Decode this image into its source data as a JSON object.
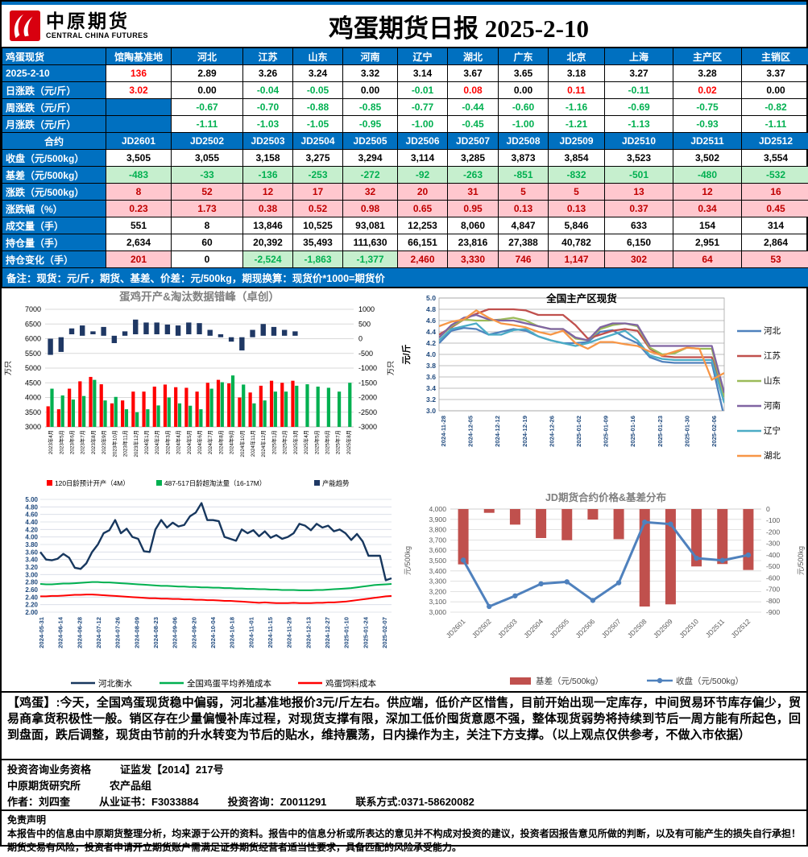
{
  "header": {
    "logo_cn": "中原期货",
    "logo_en": "CENTRAL CHINA FUTURES",
    "title": "鸡蛋期货日报 2025-2-10"
  },
  "spot_table": {
    "columns": [
      "鸡蛋现货",
      "馆陶基准地",
      "河北",
      "江苏",
      "山东",
      "河南",
      "辽宁",
      "湖北",
      "广东",
      "北京",
      "上海",
      "主产区",
      "主销区"
    ],
    "rows": [
      {
        "label": "2025-2-10",
        "type": "spot",
        "cells": [
          "136",
          "2.89",
          "3.26",
          "3.24",
          "3.32",
          "3.14",
          "3.67",
          "3.65",
          "3.18",
          "3.27",
          "3.28",
          "3.37"
        ]
      },
      {
        "label": "日涨跌（元/斤）",
        "type": "daily_chg",
        "cells": [
          "3.02",
          "0.00",
          "-0.04",
          "-0.05",
          "0.00",
          "-0.01",
          "0.08",
          "0.00",
          "0.11",
          "-0.11",
          "0.02",
          "0.00"
        ]
      },
      {
        "label": "周涨跌（元/斤）",
        "type": "period_chg",
        "cells": [
          "",
          "-0.67",
          "-0.70",
          "-0.88",
          "-0.85",
          "-0.77",
          "-0.44",
          "-0.60",
          "-1.16",
          "-0.69",
          "-0.75",
          "-0.82"
        ]
      },
      {
        "label": "月涨跌（元/斤）",
        "type": "period_chg",
        "cells": [
          "",
          "-1.11",
          "-1.03",
          "-1.05",
          "-0.95",
          "-1.00",
          "-0.45",
          "-1.00",
          "-1.21",
          "-1.13",
          "-0.93",
          "-1.11"
        ]
      },
      {
        "label": "合约",
        "type": "contract",
        "cells": [
          "JD2601",
          "JD2502",
          "JD2503",
          "JD2504",
          "JD2505",
          "JD2506",
          "JD2507",
          "JD2508",
          "JD2509",
          "JD2510",
          "JD2511",
          "JD2512"
        ]
      },
      {
        "label": "收盘（元/500kg）",
        "type": "plain",
        "cells": [
          "3,505",
          "3,055",
          "3,158",
          "3,275",
          "3,294",
          "3,114",
          "3,285",
          "3,873",
          "3,854",
          "3,523",
          "3,502",
          "3,554"
        ]
      },
      {
        "label": "基差（元/500kg）",
        "type": "basis",
        "cells": [
          "-483",
          "-33",
          "-136",
          "-253",
          "-272",
          "-92",
          "-263",
          "-851",
          "-832",
          "-501",
          "-480",
          "-532"
        ]
      },
      {
        "label": "涨跌（元/500kg）",
        "type": "updown",
        "cells": [
          "8",
          "52",
          "12",
          "17",
          "32",
          "20",
          "31",
          "5",
          "5",
          "13",
          "12",
          "16"
        ]
      },
      {
        "label": "涨跌幅（%）",
        "type": "updown",
        "cells": [
          "0.23",
          "1.73",
          "0.38",
          "0.52",
          "0.98",
          "0.65",
          "0.95",
          "0.13",
          "0.13",
          "0.37",
          "0.34",
          "0.45"
        ]
      },
      {
        "label": "成交量（手）",
        "type": "plain",
        "cells": [
          "551",
          "8",
          "13,846",
          "10,525",
          "93,081",
          "12,253",
          "8,060",
          "4,847",
          "5,846",
          "633",
          "154",
          "314"
        ]
      },
      {
        "label": "持仓量（手）",
        "type": "plain",
        "cells": [
          "2,634",
          "60",
          "20,392",
          "35,493",
          "111,630",
          "66,151",
          "23,816",
          "27,388",
          "40,782",
          "6,150",
          "2,951",
          "2,864"
        ]
      },
      {
        "label": "持仓变化（手）",
        "type": "oi_chg",
        "cells": [
          "201",
          "0",
          "-2,524",
          "-1,863",
          "-1,377",
          "2,460",
          "3,330",
          "746",
          "1,147",
          "302",
          "64",
          "53"
        ]
      }
    ],
    "note": "备注：现货：元/斤，期货、基差、价差：元/500kg，期现换算：现货价*1000=期货价"
  },
  "chart_data": [
    {
      "type": "bar",
      "title": "蛋鸡开产&淘汰数据错峰（卓创）",
      "ylabel_left": "万只",
      "ylabel_right": "万只",
      "ylim_left": [
        3000,
        7000
      ],
      "ylim_right": [
        -3000,
        1000
      ],
      "categories": [
        "2023年4月",
        "2023年5月",
        "2023年6月",
        "2023年7月",
        "2023年8月",
        "2023年9月",
        "2023年10月",
        "2023年11月",
        "2023年12月",
        "2024年1月",
        "2024年2月",
        "2024年3月",
        "2024年4月",
        "2024年5月",
        "2024年6月",
        "2024年7月",
        "2024年8月",
        "2024年9月",
        "2024年10月",
        "2024年11月",
        "2024年12月",
        "2025年1月",
        "2025年2月",
        "2025年3月",
        "2025年4月",
        "2025年5月",
        "2025年6月",
        "2025年7月",
        "2025年8月"
      ],
      "series": [
        {
          "name": "120日龄预计开产（4M）",
          "color": "#FF0000",
          "values": [
            3700,
            3600,
            4300,
            4550,
            4700,
            4450,
            3800,
            3900,
            4200,
            4200,
            4370,
            4440,
            4350,
            4330,
            4200,
            4500,
            4600,
            4480,
            4000,
            4170,
            4400,
            4570,
            4500,
            4570,
            null,
            null,
            null,
            null,
            null
          ]
        },
        {
          "name": "487-517日龄超淘汰量（16-17M）",
          "color": "#00B050",
          "values": [
            4300,
            4070,
            3930,
            4050,
            4600,
            3900,
            4020,
            3600,
            3500,
            3600,
            3730,
            4000,
            3800,
            3720,
            3600,
            4300,
            4520,
            4750,
            4440,
            3800,
            3900,
            4200,
            4200,
            4400,
            4450,
            4370,
            4330,
            4200,
            4500
          ]
        },
        {
          "name": "产能趋势",
          "color": "#1F3864",
          "ranges": [
            [
              5450,
              6000
            ],
            [
              5550,
              6050
            ],
            [
              6150,
              6350
            ],
            [
              6100,
              6450
            ],
            [
              6150,
              6250
            ],
            [
              6100,
              6400
            ],
            [
              5850,
              6100
            ],
            [
              6100,
              6250
            ],
            [
              6150,
              6650
            ],
            [
              6150,
              6550
            ],
            [
              6150,
              6550
            ],
            [
              6150,
              6480
            ],
            [
              6100,
              6450
            ],
            [
              6150,
              6550
            ],
            [
              6150,
              6530
            ],
            [
              6100,
              6300
            ],
            [
              6050,
              6150
            ],
            [
              5900,
              6050
            ],
            [
              5600,
              6050
            ],
            [
              6050,
              6300
            ],
            [
              6100,
              6500
            ],
            [
              6100,
              6400
            ],
            [
              6100,
              6300
            ],
            [
              6100,
              6250
            ],
            null,
            null,
            null,
            null,
            null
          ]
        }
      ]
    },
    {
      "type": "line",
      "title": "全国主产区现货",
      "ylabel": "元/斤",
      "ylim": [
        3.0,
        5.0
      ],
      "ystep": 0.2,
      "x": [
        "2024-11-28",
        "2024-12-05",
        "2024-12-12",
        "2024-12-19",
        "2024-12-26",
        "2025-01-02",
        "2025-01-09",
        "2025-01-16",
        "2025-01-23",
        "2025-01-30",
        "2025-02-06"
      ],
      "series": [
        {
          "name": "河北",
          "color": "#4F81BD",
          "values": [
            4.2,
            4.42,
            4.47,
            4.45,
            4.35,
            4.4,
            4.45,
            4.42,
            4.32,
            4.25,
            4.2,
            4.2,
            4.22,
            4.4,
            4.43,
            4.3,
            4.2,
            3.95,
            3.87,
            3.85,
            3.85,
            3.85,
            3.85,
            2.89
          ]
        },
        {
          "name": "江苏",
          "color": "#C0504D",
          "values": [
            4.35,
            4.48,
            4.62,
            4.72,
            4.8,
            4.8,
            4.8,
            4.78,
            4.7,
            4.7,
            4.7,
            4.52,
            4.28,
            4.35,
            4.42,
            4.45,
            4.42,
            4.1,
            3.97,
            3.95,
            3.95,
            3.95,
            3.95,
            3.26
          ]
        },
        {
          "name": "山东",
          "color": "#9BBB59",
          "values": [
            4.3,
            4.5,
            4.62,
            4.6,
            4.6,
            4.62,
            4.65,
            4.6,
            4.5,
            4.45,
            4.45,
            4.28,
            4.25,
            4.45,
            4.52,
            4.55,
            4.5,
            4.12,
            4.0,
            4.02,
            4.12,
            4.1,
            4.1,
            3.24
          ]
        },
        {
          "name": "河南",
          "color": "#8064A2",
          "values": [
            4.3,
            4.52,
            4.65,
            4.7,
            4.62,
            4.6,
            4.6,
            4.55,
            4.5,
            4.45,
            4.45,
            4.3,
            4.25,
            4.48,
            4.55,
            4.55,
            4.52,
            4.15,
            4.15,
            4.15,
            4.15,
            4.15,
            4.15,
            3.32
          ]
        },
        {
          "name": "辽宁",
          "color": "#4BACC6",
          "values": [
            4.25,
            4.45,
            4.5,
            4.55,
            4.35,
            4.35,
            4.43,
            4.45,
            4.32,
            4.25,
            4.2,
            4.15,
            4.2,
            4.28,
            4.35,
            4.42,
            4.25,
            3.98,
            3.92,
            3.9,
            3.9,
            3.9,
            3.9,
            3.14
          ]
        },
        {
          "name": "湖北",
          "color": "#F79646",
          "values": [
            4.5,
            4.58,
            4.62,
            4.78,
            4.65,
            4.55,
            4.52,
            4.48,
            4.4,
            4.35,
            4.42,
            4.2,
            4.1,
            4.22,
            4.22,
            4.18,
            4.15,
            4.05,
            3.98,
            4.05,
            4.12,
            4.1,
            3.55,
            3.67
          ]
        }
      ]
    },
    {
      "type": "line",
      "title": "",
      "ylim": [
        2.0,
        5.0
      ],
      "ystep": 0.2,
      "x": [
        "2024-05-31",
        "2024-06-14",
        "2024-06-28",
        "2024-07-12",
        "2024-07-26",
        "2024-08-09",
        "2024-08-23",
        "2024-09-06",
        "2024-09-20",
        "2024-10-04",
        "2024-10-18",
        "2024-11-01",
        "2024-11-15",
        "2024-11-29",
        "2024-12-13",
        "2024-12-27",
        "2025-01-10",
        "2025-01-24",
        "2025-02-07"
      ],
      "series": [
        {
          "name": "河北衡水",
          "color": "#17375E",
          "values": [
            3.6,
            3.4,
            3.38,
            3.42,
            3.55,
            3.45,
            3.18,
            3.15,
            3.3,
            3.6,
            3.8,
            4.1,
            4.18,
            4.45,
            4.1,
            4.22,
            4.0,
            3.95,
            3.62,
            3.6,
            4.2,
            4.45,
            4.25,
            4.38,
            4.28,
            4.32,
            4.55,
            4.65,
            4.9,
            4.45,
            4.45,
            4.42,
            4.0,
            3.95,
            3.9,
            4.2,
            4.1,
            4.18,
            4.02,
            4.15,
            3.98,
            4.05,
            3.95,
            4.0,
            4.1,
            4.35,
            4.3,
            4.18,
            4.35,
            4.25,
            4.3,
            4.15,
            4.2,
            4.1,
            3.92,
            4.08,
            3.88,
            3.5,
            3.5,
            3.5,
            2.85,
            2.9
          ]
        },
        {
          "name": "全国鸡蛋平均养殖成本",
          "color": "#00B050",
          "values": [
            2.75,
            2.74,
            2.74,
            2.75,
            2.76,
            2.76,
            2.77,
            2.78,
            2.79,
            2.8,
            2.8,
            2.79,
            2.79,
            2.78,
            2.77,
            2.76,
            2.75,
            2.74,
            2.73,
            2.72,
            2.71,
            2.7,
            2.7,
            2.69,
            2.68,
            2.68,
            2.67,
            2.67,
            2.66,
            2.66,
            2.65,
            2.65,
            2.64,
            2.64,
            2.63,
            2.63,
            2.62,
            2.62,
            2.61,
            2.61,
            2.6,
            2.6,
            2.59,
            2.59,
            2.59,
            2.58,
            2.58,
            2.58,
            2.59,
            2.59,
            2.6,
            2.61,
            2.62,
            2.63,
            2.64,
            2.66,
            2.68,
            2.7,
            2.72,
            2.73,
            2.74,
            2.75
          ]
        },
        {
          "name": "鸡蛋饲料成本",
          "color": "#FF0000",
          "values": [
            2.42,
            2.42,
            2.43,
            2.43,
            2.44,
            2.45,
            2.46,
            2.46,
            2.47,
            2.47,
            2.46,
            2.45,
            2.44,
            2.43,
            2.42,
            2.41,
            2.4,
            2.39,
            2.38,
            2.37,
            2.37,
            2.36,
            2.36,
            2.35,
            2.35,
            2.34,
            2.34,
            2.33,
            2.33,
            2.32,
            2.32,
            2.31,
            2.3,
            2.3,
            2.29,
            2.28,
            2.27,
            2.26,
            2.25,
            2.26,
            2.25,
            2.24,
            2.24,
            2.24,
            2.25,
            2.24,
            2.24,
            2.24,
            2.25,
            2.25,
            2.26,
            2.26,
            2.27,
            2.28,
            2.3,
            2.32,
            2.34,
            2.36,
            2.38,
            2.4,
            2.42,
            2.43
          ]
        }
      ]
    },
    {
      "type": "bar+line",
      "title": "JD期货合约价格&基差分布",
      "ylabel_left": "元/500kg",
      "ylabel_right": "元/500kg",
      "ylim_left": [
        3000,
        4000
      ],
      "ylim_right": [
        -900,
        0
      ],
      "categories": [
        "JD2601",
        "JD2502",
        "JD2503",
        "JD2504",
        "JD2505",
        "JD2506",
        "JD2507",
        "JD2508",
        "JD2509",
        "JD2510",
        "JD2511",
        "JD2512"
      ],
      "bar": {
        "name": "基差（元/500kg）",
        "color": "#C0504D",
        "values": [
          -483,
          -33,
          -136,
          -253,
          -272,
          -92,
          -263,
          -851,
          -832,
          -501,
          -480,
          -532
        ]
      },
      "line": {
        "name": "收盘（元/500kg）",
        "color": "#4F81BD",
        "values": [
          3505,
          3055,
          3158,
          3275,
          3294,
          3114,
          3285,
          3873,
          3854,
          3523,
          3502,
          3554
        ]
      }
    }
  ],
  "commentary": "【鸡蛋】:今天，全国鸡蛋现货稳中偏弱，河北基准地报价3元/斤左右。供应端，低价产区惜售，目前开始出现一定库存，中间贸易环节库存偏少，贸易商拿货积极性一般。销区存在少量偏慢补库过程，对现货支撑有限，深加工低价囤货意愿不强，整体现货弱势将持续到节后一周方能有所起色，回到盘面，跌后调整，现货由节前的升水转变为节后的贴水，维持震荡，日内操作为主，关注下方支撑。（以上观点仅供参考，不做入市依据）",
  "credentials": {
    "qualification": "投资咨询业务资格",
    "qualification_no": "证监发【2014】217号",
    "org": "中原期货研究所",
    "group": "农产品组",
    "author": "作者：刘四奎",
    "cert": "从业证书：F3033884",
    "advisory": "投资咨询：Z0011291",
    "contact": "联系方式:0371-58620082"
  },
  "disclaimer": {
    "title": "免责声明",
    "body": "本报告中的信息由中原期货整理分析，均来源于公开的资料。报告中的信息分析或所表达的意见并不构成对投资的建议，投资者因报告意见所做的判断，以及有可能产生的损失自行承担！期货交易有风险，投资者申请开立期货账户需满足证券期货经营者适当性要求，具备匹配的风险承受能力。"
  },
  "colors": {
    "header_blue": "#0070C0",
    "up_red": "#FF0000",
    "down_green": "#00B050",
    "green_bg": "#C6EFCE",
    "pink_bg": "#FFC7CE",
    "dark_red": "#C00000"
  }
}
